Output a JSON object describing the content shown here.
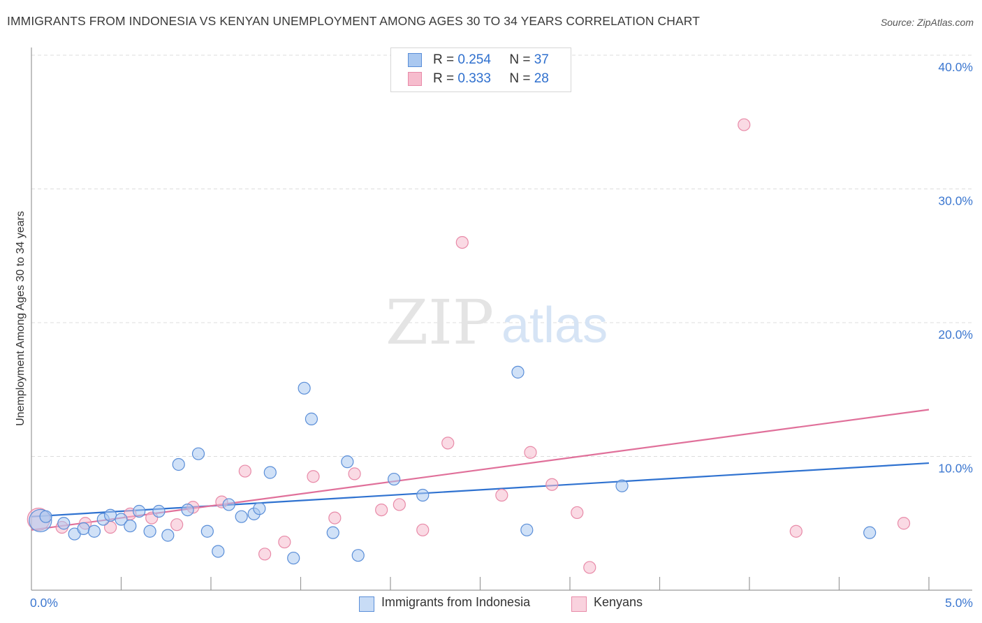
{
  "title": "IMMIGRANTS FROM INDONESIA VS KENYAN UNEMPLOYMENT AMONG AGES 30 TO 34 YEARS CORRELATION CHART",
  "source": "Source: ZipAtlas.com",
  "watermark": {
    "zip": "ZIP",
    "atlas": "atlas"
  },
  "legend": {
    "rows": [
      {
        "r_label": "R =",
        "r_value": "0.254",
        "n_label": "N =",
        "n_value": "37"
      },
      {
        "r_label": "R =",
        "r_value": "0.333",
        "n_label": "N =",
        "n_value": "28"
      }
    ]
  },
  "bottom_legend": {
    "series1": "Immigrants from Indonesia",
    "series2": "Kenyans"
  },
  "colors": {
    "blue_fill": "#aac8f0",
    "blue_stroke": "#5a8ed8",
    "blue_line": "#2f72d0",
    "pink_fill": "#f6bccd",
    "pink_stroke": "#e88aa8",
    "pink_line": "#e0709a",
    "tick_text": "#3d78d0",
    "grid": "#dcdcdc"
  },
  "chart_data": {
    "type": "scatter",
    "title": "IMMIGRANTS FROM INDONESIA VS KENYAN UNEMPLOYMENT AMONG AGES 30 TO 34 YEARS CORRELATION CHART",
    "xlabel": "",
    "ylabel": "Unemployment Among Ages 30 to 34 years",
    "xlim": [
      0,
      5
    ],
    "ylim": [
      0,
      40
    ],
    "x_tick_labels": [
      "0.0%",
      "5.0%"
    ],
    "y_ticks": [
      10,
      20,
      30,
      40
    ],
    "y_tick_labels": [
      "10.0%",
      "20.0%",
      "30.0%",
      "40.0%"
    ],
    "grid": true,
    "series": [
      {
        "name": "Immigrants from Indonesia",
        "r": 0.254,
        "n": 37,
        "trend": {
          "x": [
            0,
            5
          ],
          "y": [
            5.5,
            9.5
          ]
        },
        "points": [
          {
            "x": 0.05,
            "y": 5.2,
            "big": true
          },
          {
            "x": 0.08,
            "y": 5.5
          },
          {
            "x": 0.18,
            "y": 5.0
          },
          {
            "x": 0.24,
            "y": 4.2
          },
          {
            "x": 0.29,
            "y": 4.6
          },
          {
            "x": 0.35,
            "y": 4.4
          },
          {
            "x": 0.4,
            "y": 5.3
          },
          {
            "x": 0.44,
            "y": 5.6
          },
          {
            "x": 0.5,
            "y": 5.3
          },
          {
            "x": 0.55,
            "y": 4.8
          },
          {
            "x": 0.6,
            "y": 5.9
          },
          {
            "x": 0.66,
            "y": 4.4
          },
          {
            "x": 0.71,
            "y": 5.9
          },
          {
            "x": 0.76,
            "y": 4.1
          },
          {
            "x": 0.82,
            "y": 9.4
          },
          {
            "x": 0.87,
            "y": 6.0
          },
          {
            "x": 0.93,
            "y": 10.2
          },
          {
            "x": 0.98,
            "y": 4.4
          },
          {
            "x": 1.04,
            "y": 2.9
          },
          {
            "x": 1.1,
            "y": 6.4
          },
          {
            "x": 1.17,
            "y": 5.5
          },
          {
            "x": 1.24,
            "y": 5.7
          },
          {
            "x": 1.27,
            "y": 6.1
          },
          {
            "x": 1.33,
            "y": 8.8
          },
          {
            "x": 1.46,
            "y": 2.4
          },
          {
            "x": 1.52,
            "y": 15.1
          },
          {
            "x": 1.56,
            "y": 12.8
          },
          {
            "x": 1.68,
            "y": 4.3
          },
          {
            "x": 1.76,
            "y": 9.6
          },
          {
            "x": 1.82,
            "y": 2.6
          },
          {
            "x": 2.02,
            "y": 8.3
          },
          {
            "x": 2.18,
            "y": 7.1
          },
          {
            "x": 2.71,
            "y": 16.3
          },
          {
            "x": 2.76,
            "y": 4.5
          },
          {
            "x": 3.29,
            "y": 7.8
          },
          {
            "x": 4.67,
            "y": 4.3
          }
        ]
      },
      {
        "name": "Kenyans",
        "r": 0.333,
        "n": 28,
        "trend": {
          "x": [
            0,
            5
          ],
          "y": [
            4.5,
            13.5
          ]
        },
        "points": [
          {
            "x": 0.04,
            "y": 5.3,
            "big": true
          },
          {
            "x": 0.17,
            "y": 4.7
          },
          {
            "x": 0.3,
            "y": 5.0
          },
          {
            "x": 0.44,
            "y": 4.7
          },
          {
            "x": 0.55,
            "y": 5.7
          },
          {
            "x": 0.67,
            "y": 5.4
          },
          {
            "x": 0.81,
            "y": 4.9
          },
          {
            "x": 0.9,
            "y": 6.2
          },
          {
            "x": 1.06,
            "y": 6.6
          },
          {
            "x": 1.19,
            "y": 8.9
          },
          {
            "x": 1.3,
            "y": 2.7
          },
          {
            "x": 1.41,
            "y": 3.6
          },
          {
            "x": 1.57,
            "y": 8.5
          },
          {
            "x": 1.69,
            "y": 5.4
          },
          {
            "x": 1.8,
            "y": 8.7
          },
          {
            "x": 1.95,
            "y": 6.0
          },
          {
            "x": 2.05,
            "y": 6.4
          },
          {
            "x": 2.18,
            "y": 4.5
          },
          {
            "x": 2.32,
            "y": 11.0
          },
          {
            "x": 2.4,
            "y": 26.0
          },
          {
            "x": 2.62,
            "y": 7.1
          },
          {
            "x": 2.78,
            "y": 10.3
          },
          {
            "x": 2.9,
            "y": 7.9
          },
          {
            "x": 3.04,
            "y": 5.8
          },
          {
            "x": 3.11,
            "y": 1.7
          },
          {
            "x": 3.97,
            "y": 34.8
          },
          {
            "x": 4.26,
            "y": 4.4
          },
          {
            "x": 4.86,
            "y": 5.0
          }
        ]
      }
    ]
  }
}
